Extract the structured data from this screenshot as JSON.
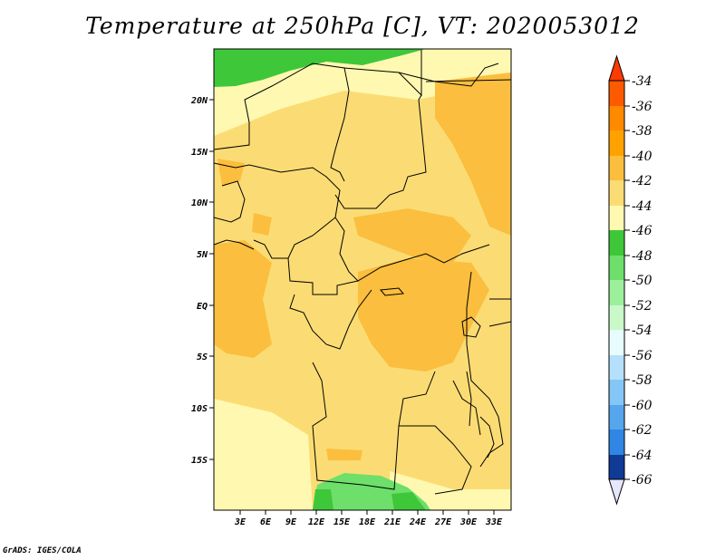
{
  "title": "Temperature at 250hPa [C], VT: 2020053012",
  "footer": "GrADS: IGES/COLA",
  "map": {
    "lat_labels": [
      "20N",
      "15N",
      "10N",
      "5N",
      "EQ",
      "5S",
      "10S",
      "15S"
    ],
    "lon_labels": [
      "3E",
      "6E",
      "9E",
      "12E",
      "15E",
      "18E",
      "21E",
      "24E",
      "27E",
      "30E",
      "33E"
    ]
  },
  "colorbar": {
    "labels": [
      "-34",
      "-36",
      "-38",
      "-40",
      "-42",
      "-44",
      "-46",
      "-48",
      "-50",
      "-52",
      "-54",
      "-56",
      "-58",
      "-60",
      "-62",
      "-64",
      "-66"
    ],
    "colors": [
      "#fd5a00",
      "#ff8a00",
      "#ffa200",
      "#fbbe3e",
      "#fbdc74",
      "#fff8b0",
      "#3fc73a",
      "#6ddf6a",
      "#9cf09c",
      "#c9f9c8",
      "#e7fcfc",
      "#b5e0fc",
      "#84c6f6",
      "#56a6ee",
      "#2f86e4",
      "#1a64cc",
      "#0f45a8",
      "#0a2a80",
      "#e6e6ff"
    ]
  }
}
